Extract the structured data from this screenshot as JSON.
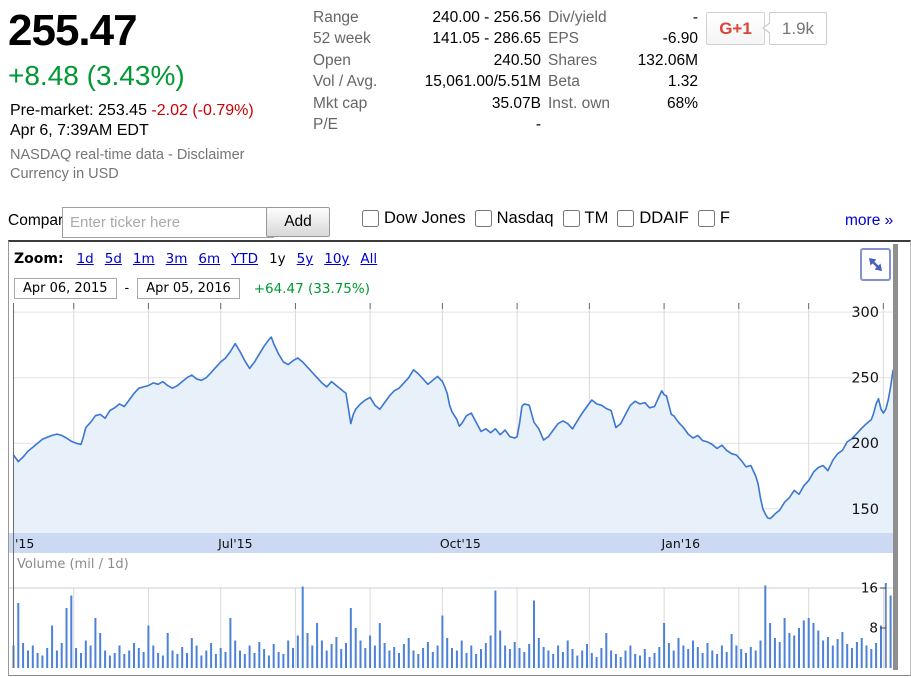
{
  "quote": {
    "price": "255.47",
    "change": "+8.48 (3.43%)",
    "premarket_label": "Pre-market:",
    "premarket_price": "253.45",
    "premarket_change": "-2.02 (-0.79%)",
    "datetime": "Apr 6, 7:39AM EDT",
    "source_note": "NASDAQ real-time data - ",
    "disclaimer_label": "Disclaimer",
    "currency_note": "Currency in USD"
  },
  "stats": {
    "left": [
      {
        "label": "Range",
        "value": "240.00 - 256.56"
      },
      {
        "label": "52 week",
        "value": "141.05 - 286.65"
      },
      {
        "label": "Open",
        "value": "240.50"
      },
      {
        "label": "Vol / Avg.",
        "value": "15,061.00/5.51M"
      },
      {
        "label": "Mkt cap",
        "value": "35.07B"
      },
      {
        "label": "P/E",
        "value": "-"
      }
    ],
    "right": [
      {
        "label": "Div/yield",
        "value": "-"
      },
      {
        "label": "EPS",
        "value": "-6.90"
      },
      {
        "label": "Shares",
        "value": "132.06M"
      },
      {
        "label": "Beta",
        "value": "1.32"
      },
      {
        "label": "Inst. own",
        "value": "68%"
      }
    ]
  },
  "social": {
    "button_label": "G+1",
    "count": "1.9k"
  },
  "compare": {
    "label": "Compare:",
    "placeholder": "Enter ticker here",
    "add_label": "Add",
    "options": [
      "Dow Jones",
      "Nasdaq",
      "TM",
      "DDAIF",
      "F"
    ],
    "more_label": "more »"
  },
  "toolbar": {
    "zoom_label": "Zoom:",
    "ranges": [
      "1d",
      "5d",
      "1m",
      "3m",
      "6m",
      "YTD",
      "1y",
      "5y",
      "10y",
      "All"
    ],
    "selected_range": "1y",
    "date_from": "Apr 06, 2015",
    "separator": "-",
    "date_to": "Apr 05, 2016",
    "period_change": "+64.47 (33.75%)"
  },
  "colors": {
    "gain_green": "#009933",
    "loss_red": "#cc0000",
    "link_blue": "#0000cc",
    "gplus_red": "#db4437"
  },
  "chart_data": {
    "type": "line",
    "x_range": {
      "from": "Apr 06, 2015",
      "to": "Apr 05, 2016",
      "days": 365
    },
    "price": {
      "unit": "USD",
      "ylim": [
        131.5,
        307
      ],
      "y_ticks": [
        150,
        200,
        250,
        300
      ],
      "points": [
        [
          0,
          191
        ],
        [
          2,
          186
        ],
        [
          4,
          189.5
        ],
        [
          6,
          194
        ],
        [
          8,
          197
        ],
        [
          10,
          200
        ],
        [
          12,
          203
        ],
        [
          14,
          204.5
        ],
        [
          16,
          206
        ],
        [
          18,
          207
        ],
        [
          20,
          206
        ],
        [
          22,
          204
        ],
        [
          24,
          201.5
        ],
        [
          26,
          200
        ],
        [
          28,
          199
        ],
        [
          29,
          205
        ],
        [
          30,
          212
        ],
        [
          32,
          216
        ],
        [
          34,
          221
        ],
        [
          36,
          222
        ],
        [
          38,
          219
        ],
        [
          40,
          225
        ],
        [
          42,
          227
        ],
        [
          44,
          230
        ],
        [
          46,
          228
        ],
        [
          48,
          233
        ],
        [
          50,
          238
        ],
        [
          52,
          242
        ],
        [
          54,
          243
        ],
        [
          56,
          244
        ],
        [
          58,
          246
        ],
        [
          60,
          245
        ],
        [
          62,
          247
        ],
        [
          64,
          244
        ],
        [
          66,
          242
        ],
        [
          68,
          244
        ],
        [
          70,
          247
        ],
        [
          72,
          250
        ],
        [
          74,
          252
        ],
        [
          76,
          249
        ],
        [
          78,
          248
        ],
        [
          80,
          250
        ],
        [
          82,
          254
        ],
        [
          84,
          258
        ],
        [
          86,
          262
        ],
        [
          88,
          265
        ],
        [
          90,
          270
        ],
        [
          92,
          276
        ],
        [
          94,
          270
        ],
        [
          96,
          263
        ],
        [
          98,
          257
        ],
        [
          100,
          262
        ],
        [
          102,
          268
        ],
        [
          104,
          274
        ],
        [
          106,
          279
        ],
        [
          107,
          281
        ],
        [
          108,
          276
        ],
        [
          110,
          268
        ],
        [
          112,
          262
        ],
        [
          114,
          260
        ],
        [
          116,
          263
        ],
        [
          118,
          265
        ],
        [
          120,
          262
        ],
        [
          122,
          258
        ],
        [
          124,
          254
        ],
        [
          126,
          250
        ],
        [
          128,
          246
        ],
        [
          130,
          243
        ],
        [
          132,
          247
        ],
        [
          134,
          244
        ],
        [
          136,
          241
        ],
        [
          138,
          238
        ],
        [
          140,
          215
        ],
        [
          141,
          222
        ],
        [
          142,
          226
        ],
        [
          144,
          230
        ],
        [
          146,
          233
        ],
        [
          148,
          235
        ],
        [
          150,
          229
        ],
        [
          152,
          226
        ],
        [
          154,
          231
        ],
        [
          156,
          236
        ],
        [
          158,
          240
        ],
        [
          160,
          242
        ],
        [
          162,
          246
        ],
        [
          164,
          250
        ],
        [
          166,
          256
        ],
        [
          168,
          253
        ],
        [
          170,
          249
        ],
        [
          172,
          245
        ],
        [
          174,
          248
        ],
        [
          176,
          251
        ],
        [
          178,
          247
        ],
        [
          179,
          243
        ],
        [
          180,
          238
        ],
        [
          181,
          229
        ],
        [
          182,
          224
        ],
        [
          184,
          218
        ],
        [
          185,
          213
        ],
        [
          186,
          215
        ],
        [
          188,
          221
        ],
        [
          190,
          223
        ],
        [
          192,
          216
        ],
        [
          194,
          209
        ],
        [
          196,
          211
        ],
        [
          198,
          208
        ],
        [
          200,
          211
        ],
        [
          202,
          206.5
        ],
        [
          204,
          210
        ],
        [
          206,
          205
        ],
        [
          208,
          204
        ],
        [
          209,
          205
        ],
        [
          210,
          215
        ],
        [
          211,
          228
        ],
        [
          212,
          230
        ],
        [
          214,
          229
        ],
        [
          216,
          216
        ],
        [
          218,
          211
        ],
        [
          220,
          202.5
        ],
        [
          222,
          205
        ],
        [
          224,
          210
        ],
        [
          226,
          215
        ],
        [
          228,
          217
        ],
        [
          230,
          215
        ],
        [
          232,
          211
        ],
        [
          234,
          217
        ],
        [
          236,
          223
        ],
        [
          238,
          228
        ],
        [
          240,
          233
        ],
        [
          242,
          230
        ],
        [
          244,
          229
        ],
        [
          246,
          226.5
        ],
        [
          248,
          225
        ],
        [
          250,
          212
        ],
        [
          252,
          215
        ],
        [
          254,
          222
        ],
        [
          256,
          229
        ],
        [
          258,
          232
        ],
        [
          260,
          230
        ],
        [
          262,
          231
        ],
        [
          264,
          227
        ],
        [
          266,
          228
        ],
        [
          267,
          232
        ],
        [
          268,
          236
        ],
        [
          269,
          240
        ],
        [
          270,
          237
        ],
        [
          271,
          236
        ],
        [
          272,
          229
        ],
        [
          273,
          222
        ],
        [
          274,
          221
        ],
        [
          276,
          216
        ],
        [
          278,
          212
        ],
        [
          280,
          207
        ],
        [
          282,
          204
        ],
        [
          284,
          206
        ],
        [
          286,
          202
        ],
        [
          288,
          201
        ],
        [
          290,
          199
        ],
        [
          292,
          196
        ],
        [
          294,
          198.5
        ],
        [
          296,
          194.5
        ],
        [
          298,
          192
        ],
        [
          300,
          191
        ],
        [
          302,
          187
        ],
        [
          304,
          182
        ],
        [
          306,
          183
        ],
        [
          308,
          175
        ],
        [
          309,
          169
        ],
        [
          310,
          158
        ],
        [
          311,
          150
        ],
        [
          312,
          146
        ],
        [
          313,
          143
        ],
        [
          314,
          142.5
        ],
        [
          315,
          144
        ],
        [
          316,
          146
        ],
        [
          318,
          149
        ],
        [
          320,
          155
        ],
        [
          322,
          158.5
        ],
        [
          324,
          164
        ],
        [
          326,
          161
        ],
        [
          328,
          167.5
        ],
        [
          330,
          171.5
        ],
        [
          332,
          178
        ],
        [
          334,
          181.5
        ],
        [
          336,
          183
        ],
        [
          338,
          179
        ],
        [
          340,
          187
        ],
        [
          342,
          192
        ],
        [
          344,
          194.5
        ],
        [
          346,
          201
        ],
        [
          348,
          203.5
        ],
        [
          350,
          207.5
        ],
        [
          352,
          211.5
        ],
        [
          354,
          215
        ],
        [
          356,
          218
        ],
        [
          357,
          223
        ],
        [
          358,
          230
        ],
        [
          359,
          234
        ],
        [
          360,
          226
        ],
        [
          361,
          223
        ],
        [
          362,
          226
        ],
        [
          363,
          233
        ],
        [
          364,
          243
        ],
        [
          365,
          255.47
        ]
      ]
    },
    "x_axis": {
      "tick_labels": [
        {
          "day": 0,
          "label": "'15"
        },
        {
          "day": 87,
          "label": "Jul'15"
        },
        {
          "day": 179,
          "label": "Oct'15"
        },
        {
          "day": 271,
          "label": "Jan'16"
        }
      ],
      "month_grid_days": [
        25,
        56,
        86,
        117,
        148,
        178,
        209,
        239,
        270,
        301,
        330,
        361
      ]
    },
    "volume": {
      "label": "Volume (mil / 1d)",
      "y_ticks": [
        8,
        16
      ],
      "ylim": [
        0,
        17
      ],
      "bar_day_step": 2,
      "values": [
        4.5,
        13,
        5,
        3.5,
        4.5,
        3,
        2.5,
        4,
        8.5,
        3.5,
        5,
        12,
        14.5,
        4,
        3,
        5.5,
        4.5,
        10,
        7,
        3.5,
        2.5,
        3,
        4.5,
        2.8,
        3.5,
        5,
        4,
        3.2,
        8.5,
        4.5,
        3,
        2.5,
        7,
        3.5,
        2.8,
        4.2,
        3,
        6,
        4.5,
        2.5,
        3.5,
        5,
        2.8,
        4,
        3.2,
        10,
        5.5,
        3.5,
        2.8,
        4.5,
        3,
        5.2,
        3.8,
        2.5,
        4.8,
        3.2,
        2.8,
        5.5,
        4,
        6.5,
        16.3,
        7,
        4.5,
        9,
        5.5,
        3.5,
        4.8,
        6.2,
        3.8,
        5,
        12,
        8,
        5.5,
        4,
        6.5,
        4.5,
        9,
        5,
        3.5,
        4.2,
        3,
        4.8,
        6,
        3.5,
        2.8,
        4,
        5.2,
        3.2,
        4.5,
        10.5,
        6,
        4,
        3.5,
        5.5,
        3,
        4.5,
        2.8,
        3.8,
        5,
        6.5,
        15.5,
        7.5,
        4.5,
        3.8,
        5.2,
        4,
        3.2,
        4.8,
        13.5,
        6,
        4.2,
        3.5,
        2.8,
        4.5,
        3.2,
        5.5,
        3.8,
        2.5,
        3.5,
        4.8,
        3,
        2.2,
        4,
        7,
        3.5,
        2.8,
        2.2,
        3.5,
        4.5,
        2.8,
        2.5,
        3.8,
        2.2,
        3,
        4.2,
        9,
        5,
        3.5,
        6,
        4.5,
        3.8,
        5.5,
        4.2,
        3,
        5,
        3.5,
        2.8,
        4.5,
        3.2,
        6.8,
        4.5,
        3.8,
        3,
        4.2,
        3.5,
        5.5,
        16.5,
        9,
        6,
        5.2,
        10,
        7,
        6.5,
        8,
        9.5,
        10,
        9,
        7.5,
        5.5,
        6.2,
        4.5,
        5.8,
        7.2,
        4.8,
        4,
        5.2,
        6,
        4.5,
        3.8,
        5,
        8.5,
        17,
        14.5
      ]
    },
    "colors": {
      "line": "#3a76d2",
      "fill": "#e8f0fa",
      "band": "#cbd9f2",
      "volume_bar": "#4d82d6",
      "grid_h": "#e2e2e2",
      "grid_v": "#d9d9d9",
      "separator": "#c8d0da",
      "axis": "#6e6e6e",
      "tick": "#5f6b7a",
      "label": "#111111"
    }
  }
}
